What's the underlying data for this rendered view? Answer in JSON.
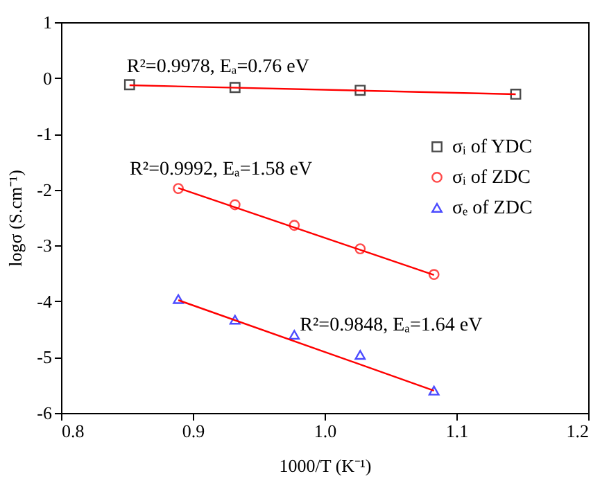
{
  "chart_data": {
    "type": "scatter",
    "xlabel": "1000/T (K⁻¹)",
    "ylabel": "logσ (S.cm⁻¹)",
    "xlim": [
      0.8,
      1.2
    ],
    "ylim": [
      -6,
      1
    ],
    "xticks": [
      {
        "value": 0.8,
        "label": "0.8"
      },
      {
        "value": 0.9,
        "label": "0.9"
      },
      {
        "value": 1.0,
        "label": "1.0"
      },
      {
        "value": 1.1,
        "label": "1.1"
      },
      {
        "value": 1.2,
        "label": "1.2"
      }
    ],
    "yticks": [
      -6,
      -5,
      -4,
      -3,
      -2,
      -1,
      0,
      1
    ],
    "grid": false,
    "legend": "right",
    "series": [
      {
        "name": "σᵢ of YDC",
        "color": "#000000",
        "marker": "square",
        "x": [
          0.852,
          0.932,
          1.027,
          1.145
        ],
        "values": [
          -0.12,
          -0.17,
          -0.22,
          -0.29
        ]
      },
      {
        "name": "σᵢ of ZDC",
        "color": "#ff0000",
        "marker": "circle",
        "x": [
          0.889,
          0.932,
          0.977,
          1.027,
          1.083
        ],
        "values": [
          -1.98,
          -2.27,
          -2.64,
          -3.06,
          -3.52
        ]
      },
      {
        "name": "σₑ of ZDC",
        "color": "#0000ff",
        "marker": "triangle",
        "x": [
          0.889,
          0.932,
          0.977,
          1.027,
          1.083
        ],
        "values": [
          -3.96,
          -4.33,
          -4.6,
          -4.96,
          -5.6
        ]
      },
      {
        "type": "line",
        "color": "#ff0000",
        "marker": "none",
        "line_style": "solid",
        "x": [
          0.852,
          1.145
        ],
        "values": [
          -0.13,
          -0.29
        ]
      },
      {
        "type": "line",
        "color": "#ff0000",
        "marker": "none",
        "line_style": "solid",
        "x": [
          0.889,
          1.083
        ],
        "values": [
          -1.97,
          -3.53
        ]
      },
      {
        "type": "line",
        "color": "#ff0000",
        "marker": "none",
        "line_style": "solid",
        "x": [
          0.889,
          1.083
        ],
        "values": [
          -3.98,
          -5.6
        ]
      }
    ],
    "annotations": [
      "R²=0.9978, Eₐ=0.76 eV",
      "R²=0.9992, Eₐ=1.58 eV",
      "R²=0.9848, Eₐ=1.64 eV"
    ]
  }
}
